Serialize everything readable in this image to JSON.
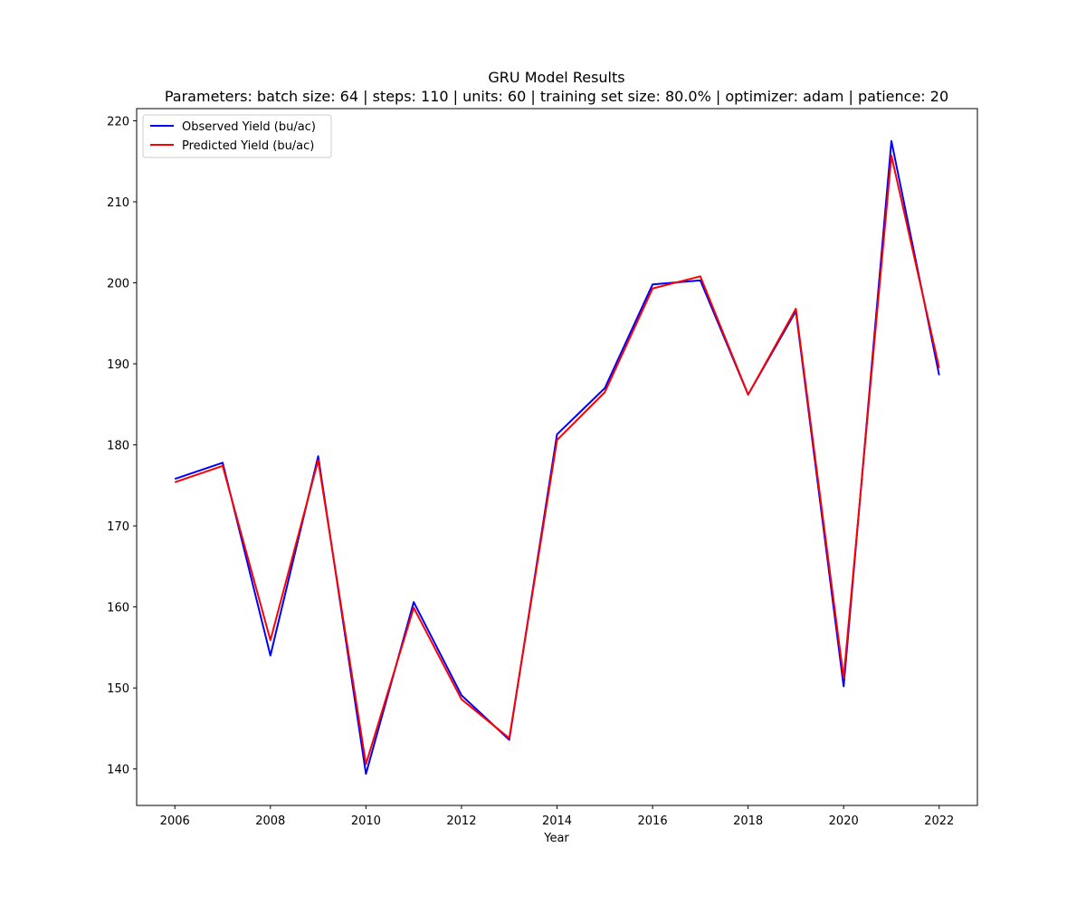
{
  "chart_data": {
    "type": "line",
    "title": "GRU Model Results",
    "subtitle": "Parameters: batch size: 64 | steps: 110 | units: 60 | training set size: 80.0% | optimizer: adam | patience: 20",
    "xlabel": "Year",
    "ylabel": "",
    "xlim": [
      2005.2,
      2022.8
    ],
    "ylim": [
      135.5,
      221.5
    ],
    "x": [
      2006,
      2007,
      2008,
      2009,
      2010,
      2011,
      2012,
      2013,
      2014,
      2015,
      2016,
      2017,
      2018,
      2019,
      2020,
      2021,
      2022
    ],
    "xticks": [
      2006,
      2008,
      2010,
      2012,
      2014,
      2016,
      2018,
      2020,
      2022
    ],
    "yticks": [
      140,
      150,
      160,
      170,
      180,
      190,
      200,
      210,
      220
    ],
    "grid": false,
    "legend_position": "upper-left",
    "series": [
      {
        "name": "Observed Yield (bu/ac)",
        "color": "#0000ff",
        "values": [
          175.8,
          177.8,
          154.0,
          178.6,
          139.4,
          160.6,
          149.1,
          143.6,
          181.3,
          187.0,
          199.8,
          200.3,
          186.2,
          196.5,
          150.2,
          217.5,
          188.6
        ]
      },
      {
        "name": "Predicted Yield (bu/ac)",
        "color": "#ff0000",
        "values": [
          175.4,
          177.4,
          155.9,
          178.1,
          140.6,
          159.9,
          148.6,
          143.8,
          180.6,
          186.5,
          199.3,
          200.8,
          186.2,
          196.8,
          151.2,
          215.7,
          189.5
        ]
      }
    ]
  }
}
